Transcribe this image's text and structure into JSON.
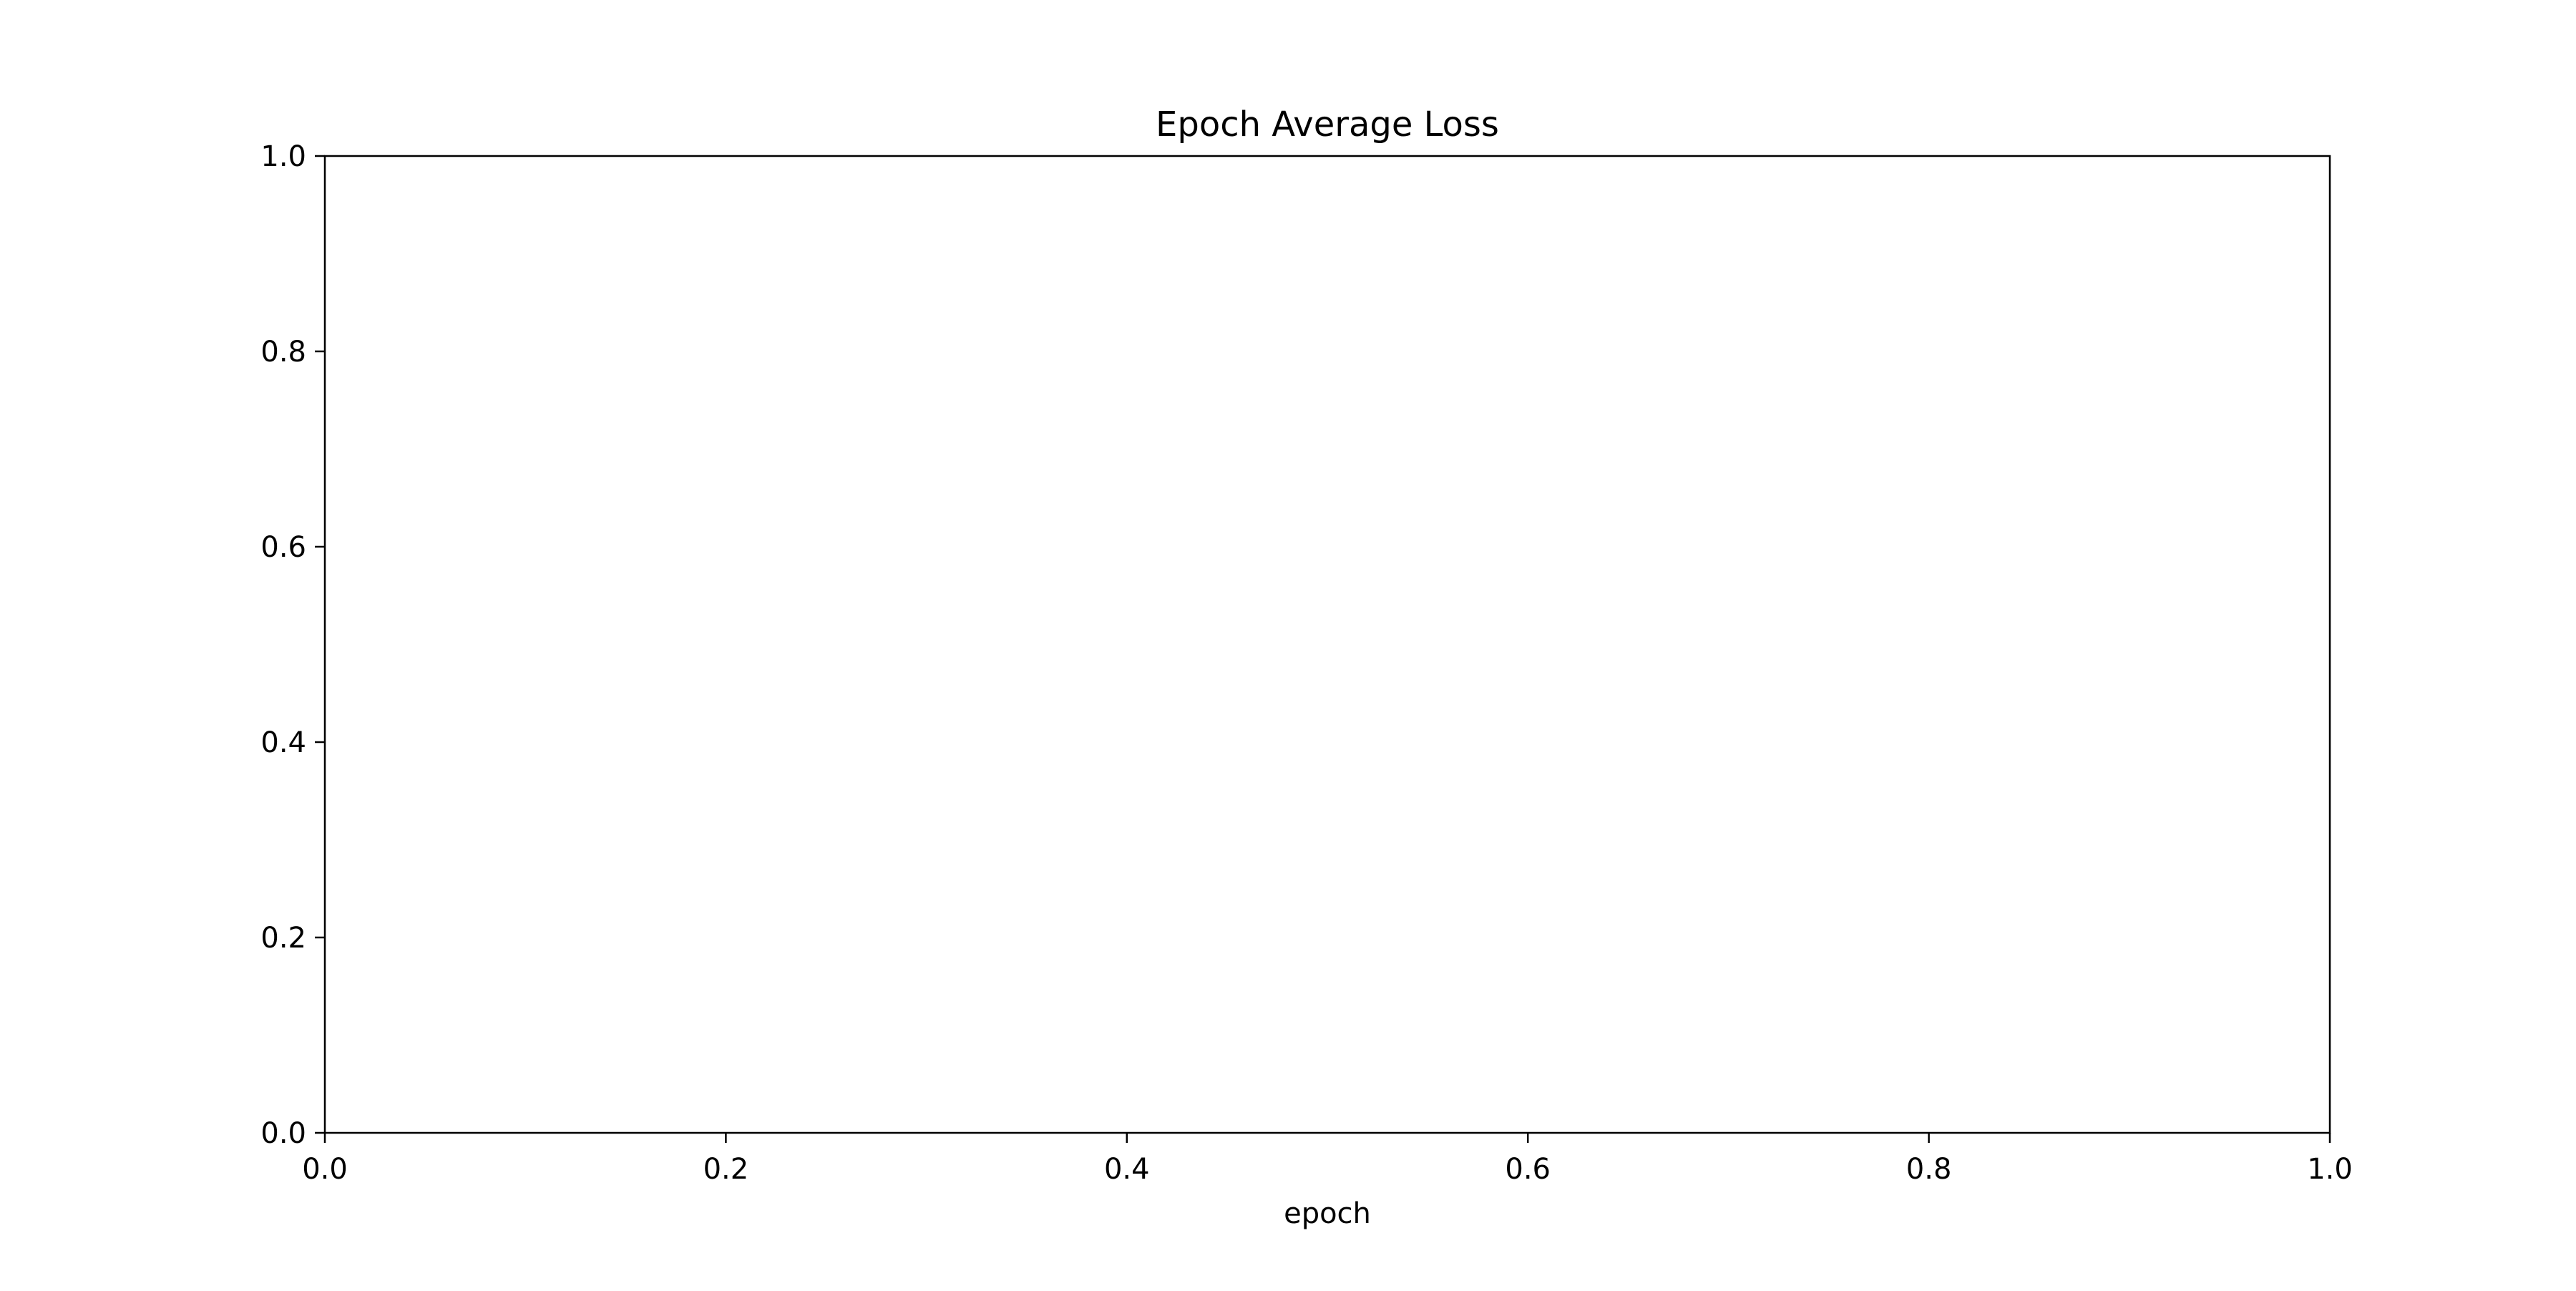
{
  "chart_data": {
    "type": "line",
    "title": "Epoch Average Loss",
    "xlabel": "epoch",
    "ylabel": "",
    "xlim": [
      0.0,
      1.0
    ],
    "ylim": [
      0.0,
      1.0
    ],
    "x_ticks": [
      0.0,
      0.2,
      0.4,
      0.6,
      0.8,
      1.0
    ],
    "y_ticks": [
      0.0,
      0.2,
      0.4,
      0.6,
      0.8,
      1.0
    ],
    "x_tick_labels": [
      "0.0",
      "0.2",
      "0.4",
      "0.6",
      "0.8",
      "1.0"
    ],
    "y_tick_labels": [
      "0.0",
      "0.2",
      "0.4",
      "0.6",
      "0.8",
      "1.0"
    ],
    "series": [],
    "grid": false,
    "legend": "none",
    "colors": {
      "axes": "#000000",
      "background": "#ffffff"
    }
  }
}
